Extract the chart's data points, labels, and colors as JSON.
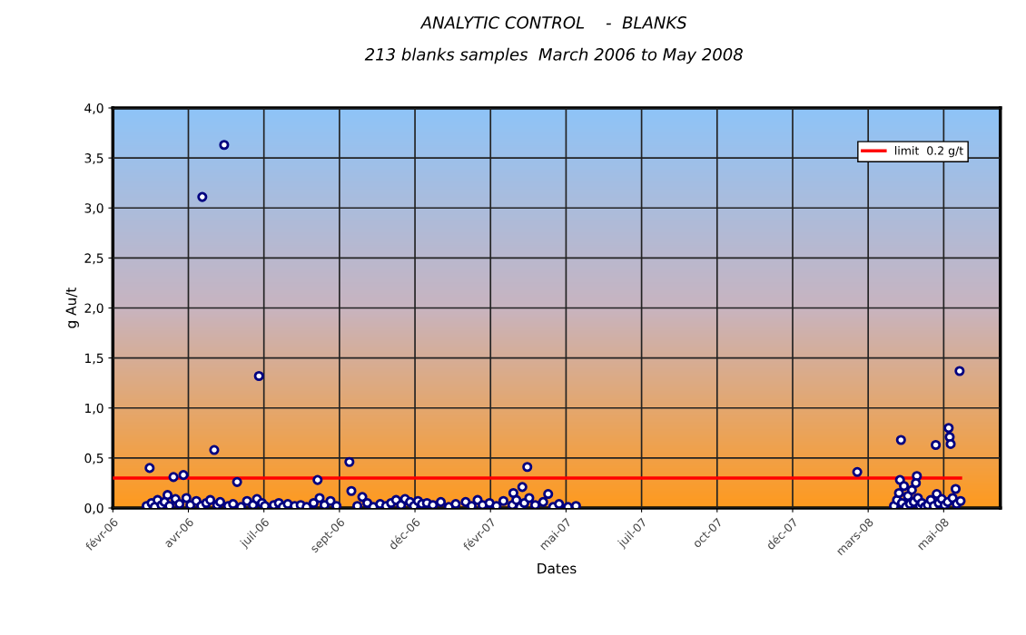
{
  "chart_data": {
    "type": "scatter",
    "title": "ANALYTIC CONTROL    -  BLANKS",
    "subtitle": "213 blanks samples  March 2006 to May 2008",
    "xlabel": "Dates",
    "ylabel": "g Au/t",
    "xlim": [
      "2006-02-01",
      "2008-07-13"
    ],
    "xticks": [
      {
        "value": "2006-02-01",
        "label": "févr-06"
      },
      {
        "value": "2006-04-18",
        "label": "avr-06"
      },
      {
        "value": "2006-07-03",
        "label": "juil-06"
      },
      {
        "value": "2006-09-17",
        "label": "sept-06"
      },
      {
        "value": "2006-12-02",
        "label": "déc-06"
      },
      {
        "value": "2007-02-16",
        "label": "févr-07"
      },
      {
        "value": "2007-05-03",
        "label": "mai-07"
      },
      {
        "value": "2007-07-18",
        "label": "juil-07"
      },
      {
        "value": "2007-10-02",
        "label": "oct-07"
      },
      {
        "value": "2007-12-17",
        "label": "déc-07"
      },
      {
        "value": "2008-03-02",
        "label": "mars-08"
      },
      {
        "value": "2008-05-17",
        "label": "mai-08"
      }
    ],
    "ylim": [
      0,
      4
    ],
    "yticks": [
      {
        "value": 0,
        "label": "0,0"
      },
      {
        "value": 0.5,
        "label": "0,5"
      },
      {
        "value": 1,
        "label": "1,0"
      },
      {
        "value": 1.5,
        "label": "1,5"
      },
      {
        "value": 2,
        "label": "2,0"
      },
      {
        "value": 2.5,
        "label": "2,5"
      },
      {
        "value": 3,
        "label": "3,0"
      },
      {
        "value": 3.5,
        "label": "3,5"
      },
      {
        "value": 4,
        "label": "4,0"
      }
    ],
    "grid": true,
    "legend": "top right",
    "marker": "circle",
    "series": [
      {
        "color": "#000080",
        "x": [
          "2006-03-10",
          "2006-03-28",
          "2006-04-03",
          "2006-04-13",
          "2006-05-02",
          "2006-05-14",
          "2006-05-24",
          "2006-06-06",
          "2006-06-28",
          "2006-08-26",
          "2006-09-27",
          "2006-09-29",
          "2007-03-11",
          "2007-03-20",
          "2007-03-25",
          "2007-04-15",
          "2008-02-20",
          "2008-04-03",
          "2008-04-04",
          "2008-04-20",
          "2008-05-09",
          "2008-05-10",
          "2008-05-22",
          "2008-05-23",
          "2008-05-24",
          "2008-05-29",
          "2008-06-02",
          "2006-03-07",
          "2006-03-12",
          "2006-03-15",
          "2006-03-18",
          "2006-03-22",
          "2006-03-25",
          "2006-03-30",
          "2006-04-05",
          "2006-04-09",
          "2006-04-16",
          "2006-04-20",
          "2006-04-26",
          "2006-05-01",
          "2006-05-06",
          "2006-05-10",
          "2006-05-17",
          "2006-05-20",
          "2006-05-28",
          "2006-06-02",
          "2006-06-10",
          "2006-06-16",
          "2006-06-22",
          "2006-06-26",
          "2006-07-01",
          "2006-07-04",
          "2006-07-13",
          "2006-07-18",
          "2006-07-22",
          "2006-07-27",
          "2006-08-03",
          "2006-08-09",
          "2006-08-15",
          "2006-08-22",
          "2006-08-28",
          "2006-09-02",
          "2006-09-08",
          "2006-09-14",
          "2006-10-05",
          "2006-10-10",
          "2006-10-15",
          "2006-10-21",
          "2006-10-28",
          "2006-11-03",
          "2006-11-08",
          "2006-11-13",
          "2006-11-18",
          "2006-11-22",
          "2006-11-27",
          "2006-12-01",
          "2006-12-05",
          "2006-12-09",
          "2006-12-14",
          "2006-12-20",
          "2006-12-28",
          "2007-01-05",
          "2007-01-12",
          "2007-01-22",
          "2007-01-28",
          "2007-02-03",
          "2007-02-08",
          "2007-02-15",
          "2007-02-22",
          "2007-03-01",
          "2007-03-10",
          "2007-03-14",
          "2007-03-18",
          "2007-03-22",
          "2007-03-27",
          "2007-04-02",
          "2007-04-10",
          "2007-04-20",
          "2007-04-26",
          "2007-05-05",
          "2007-05-13",
          "2008-03-28",
          "2008-03-31",
          "2008-04-02",
          "2008-04-05",
          "2008-04-07",
          "2008-04-09",
          "2008-04-11",
          "2008-04-13",
          "2008-04-15",
          "2008-04-17",
          "2008-04-19",
          "2008-04-21",
          "2008-04-23",
          "2008-04-25",
          "2008-04-28",
          "2008-05-01",
          "2008-05-04",
          "2008-05-07",
          "2008-05-12",
          "2008-05-15",
          "2008-05-18",
          "2008-05-21",
          "2008-05-26",
          "2008-05-30",
          "2008-06-03"
        ],
        "values": [
          0.4,
          0.13,
          0.31,
          0.33,
          3.11,
          0.58,
          3.63,
          0.26,
          1.32,
          0.28,
          0.46,
          0.17,
          0.15,
          0.21,
          0.41,
          0.14,
          0.36,
          0.28,
          0.68,
          0.32,
          0.63,
          0.14,
          0.8,
          0.71,
          0.64,
          0.19,
          1.37,
          0.02,
          0.05,
          0.01,
          0.08,
          0.03,
          0.06,
          0.02,
          0.09,
          0.04,
          0.1,
          0.03,
          0.07,
          0.02,
          0.05,
          0.08,
          0.03,
          0.06,
          0.02,
          0.04,
          0.01,
          0.07,
          0.03,
          0.09,
          0.05,
          0.02,
          0.03,
          0.05,
          0.01,
          0.04,
          0.02,
          0.03,
          0.01,
          0.05,
          0.1,
          0.03,
          0.07,
          0.02,
          0.02,
          0.11,
          0.05,
          0.01,
          0.04,
          0.02,
          0.05,
          0.08,
          0.03,
          0.09,
          0.06,
          0.02,
          0.07,
          0.04,
          0.05,
          0.03,
          0.06,
          0.01,
          0.04,
          0.06,
          0.02,
          0.08,
          0.03,
          0.05,
          0.02,
          0.07,
          0.03,
          0.08,
          0.01,
          0.05,
          0.1,
          0.03,
          0.06,
          0.01,
          0.04,
          0.01,
          0.02,
          0.02,
          0.08,
          0.15,
          0.05,
          0.22,
          0.01,
          0.12,
          0.04,
          0.18,
          0.06,
          0.25,
          0.1,
          0.02,
          0.05,
          0.01,
          0.03,
          0.08,
          0.02,
          0.05,
          0.09,
          0.03,
          0.06,
          0.1,
          0.04,
          0.07
        ]
      },
      {
        "type": "line",
        "name": "limit  0.2 g/t",
        "color": "#ff0000",
        "marker": "none",
        "x": [
          "2006-02-01",
          "2008-06-03"
        ],
        "values": [
          0.3,
          0.3
        ]
      }
    ]
  }
}
